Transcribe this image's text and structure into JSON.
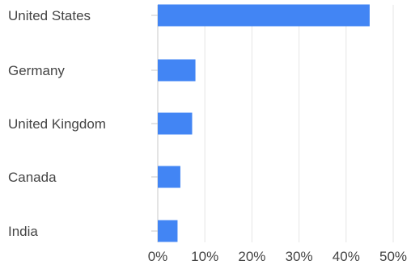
{
  "colors": {
    "bar": "#4285F4",
    "grid": "#E5E5E5",
    "axis": "#C8C8C8",
    "label": "#444444"
  },
  "chart_data": {
    "type": "bar",
    "orientation": "horizontal",
    "categories": [
      "United States",
      "Germany",
      "United Kingdom",
      "Canada",
      "India"
    ],
    "values": [
      45,
      8,
      7.3,
      4.8,
      4.2
    ],
    "xticks": [
      "0%",
      "10%",
      "20%",
      "30%",
      "40%",
      "50%"
    ],
    "xlim": [
      0,
      50
    ],
    "title": "",
    "xlabel": "",
    "ylabel": "",
    "grid": true,
    "legend": "none"
  }
}
